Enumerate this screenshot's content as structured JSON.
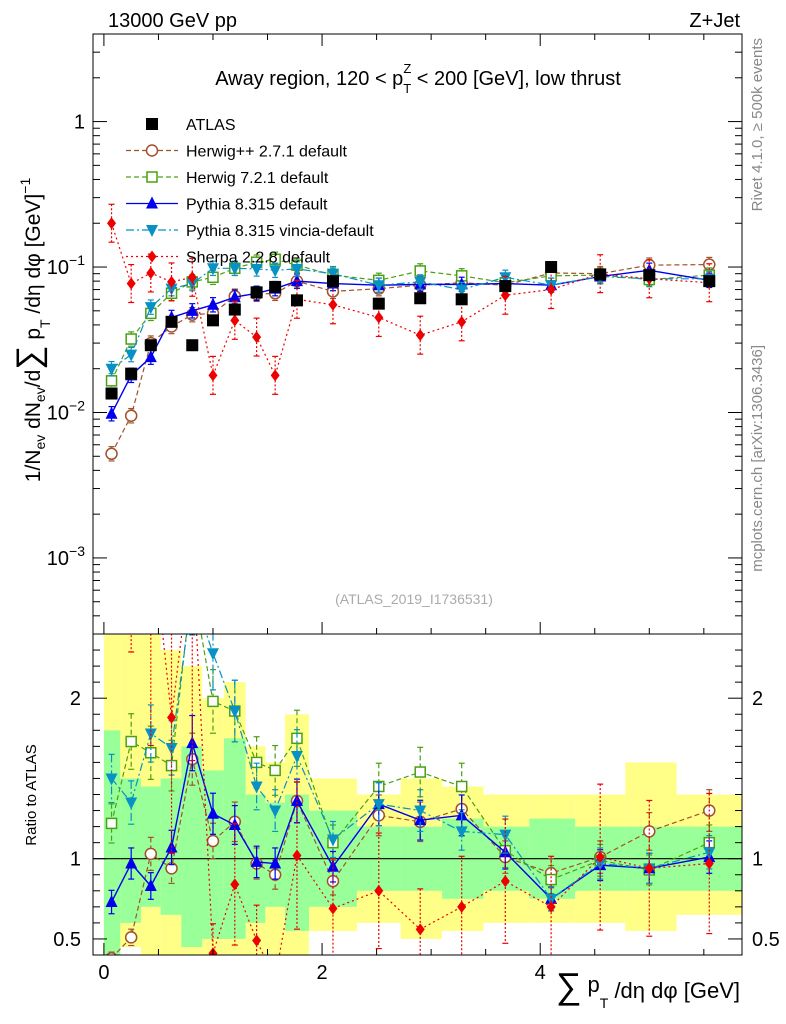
{
  "header": {
    "left": "13000 GeV pp",
    "right": "Z+Jet"
  },
  "side": {
    "rivet": "Rivet 4.1.0, ≥ 500k events",
    "mcplots": "mcplots.cern.ch [arXiv:1306.3436]"
  },
  "chart_data": [
    {
      "type": "scatter",
      "title": "Away region, 120 < p_T^Z < 200 [GeV], low thrust",
      "xlabel": "∑ p_T /dη dφ [GeV]",
      "ylabel": "1/N_ev dN_ev/d∑ p_T /dη dφ [GeV]^-1",
      "yscale": "log",
      "xlim": [
        -0.1,
        5.85
      ],
      "ylim": [
        0.0003,
        4.0
      ],
      "x_ticks": [
        0,
        2,
        4
      ],
      "y_ticks": [
        {
          "v": 0.001,
          "label": "10^-3"
        },
        {
          "v": 0.01,
          "label": "10^-2"
        },
        {
          "v": 0.1,
          "label": "10^-1"
        },
        {
          "v": 1,
          "label": "1"
        }
      ],
      "watermark": "(ATLAS_2019_I1736531)",
      "legend_position": "top-left",
      "x": [
        0.07,
        0.25,
        0.43,
        0.62,
        0.81,
        1.0,
        1.2,
        1.4,
        1.57,
        1.77,
        2.1,
        2.52,
        2.9,
        3.28,
        3.68,
        4.1,
        4.55,
        5.0,
        5.55
      ],
      "series": [
        {
          "name": "ATLAS",
          "color": "#000000",
          "marker": "square-filled",
          "line": "none",
          "values": [
            0.0135,
            0.0185,
            0.029,
            0.042,
            0.029,
            0.043,
            0.051,
            0.067,
            0.073,
            0.059,
            0.08,
            0.056,
            0.061,
            0.06,
            0.074,
            0.1,
            0.089,
            0.088,
            0.08
          ]
        },
        {
          "name": "Herwig++ 2.7.1 default",
          "color": "#a0522d",
          "marker": "circle-open",
          "line": "dashed",
          "values": [
            0.0052,
            0.0095,
            0.03,
            0.039,
            0.047,
            0.048,
            0.063,
            0.065,
            0.066,
            0.08,
            0.068,
            0.071,
            0.075,
            0.078,
            0.075,
            0.091,
            0.09,
            0.103,
            0.104
          ],
          "ratio": [
            0.38,
            0.51,
            1.03,
            0.94,
            1.62,
            1.11,
            1.23,
            0.97,
            0.9,
            1.36,
            0.86,
            1.27,
            1.23,
            1.31,
            1.01,
            0.91,
            1.01,
            1.17,
            1.3
          ]
        },
        {
          "name": "Herwig 7.2.1 default",
          "color": "#4aa012",
          "marker": "square-open",
          "line": "dashed",
          "values": [
            0.0165,
            0.032,
            0.048,
            0.066,
            0.079,
            0.085,
            0.098,
            0.108,
            0.113,
            0.103,
            0.088,
            0.081,
            0.094,
            0.087,
            0.078,
            0.087,
            0.088,
            0.082,
            0.088
          ],
          "ratio": [
            1.22,
            1.73,
            1.66,
            1.58,
            2.72,
            1.98,
            1.92,
            1.6,
            1.55,
            1.75,
            1.1,
            1.45,
            1.54,
            1.45,
            1.05,
            0.87,
            0.99,
            0.93,
            1.1
          ]
        },
        {
          "name": "Pythia 8.315 default",
          "color": "#0000ee",
          "marker": "triangle-up-filled",
          "line": "solid",
          "values": [
            0.0098,
            0.018,
            0.024,
            0.045,
            0.05,
            0.055,
            0.062,
            0.066,
            0.071,
            0.08,
            0.077,
            0.075,
            0.076,
            0.076,
            0.077,
            0.075,
            0.086,
            0.095,
            0.081
          ],
          "ratio": [
            0.73,
            0.97,
            0.83,
            1.07,
            1.72,
            1.28,
            1.21,
            0.98,
            0.97,
            1.36,
            0.95,
            1.34,
            1.24,
            1.27,
            1.04,
            0.75,
            0.96,
            0.94,
            1.01
          ]
        },
        {
          "name": "Pythia 8.315 vincia-default",
          "color": "#0891c4",
          "marker": "triangle-down-filled",
          "line": "dashdot",
          "values": [
            0.02,
            0.025,
            0.053,
            0.071,
            0.077,
            0.098,
            0.098,
            0.097,
            0.095,
            0.097,
            0.09,
            0.075,
            0.079,
            0.07,
            0.085,
            0.075,
            0.086,
            0.083,
            0.083
          ],
          "ratio": [
            1.5,
            1.35,
            1.78,
            1.69,
            2.66,
            2.28,
            1.92,
            1.45,
            1.3,
            1.64,
            1.12,
            1.34,
            1.3,
            1.17,
            1.15,
            0.75,
            0.97,
            0.94,
            1.04
          ]
        },
        {
          "name": "Sherpa 2.2.8 default",
          "color": "#ee0000",
          "marker": "diamond-filled",
          "line": "dotted",
          "values": [
            0.2,
            0.077,
            0.091,
            0.079,
            0.085,
            0.018,
            0.043,
            0.033,
            0.018,
            0.06,
            0.055,
            0.045,
            0.034,
            0.042,
            0.064,
            0.07,
            0.09,
            0.083,
            0.078
          ],
          "ratio": [
            14.7,
            4.16,
            3.1,
            1.88,
            2.93,
            0.41,
            0.84,
            0.49,
            0.25,
            1.02,
            0.69,
            0.8,
            0.56,
            0.7,
            0.86,
            0.7,
            1.01,
            0.94,
            0.97
          ]
        }
      ]
    },
    {
      "type": "scatter",
      "ylabel": "Ratio to ATLAS",
      "ylim": [
        0.4,
        2.4
      ],
      "y_ticks": [
        {
          "v": 0.5,
          "label": "0.5"
        },
        {
          "v": 1,
          "label": "1"
        },
        {
          "v": 2,
          "label": "2"
        }
      ],
      "reference": 1.0,
      "bins": [
        [
          0.0,
          0.15
        ],
        [
          0.15,
          0.34
        ],
        [
          0.34,
          0.52
        ],
        [
          0.52,
          0.71
        ],
        [
          0.71,
          0.9
        ],
        [
          0.9,
          1.1
        ],
        [
          1.1,
          1.3
        ],
        [
          1.3,
          1.48
        ],
        [
          1.48,
          1.66
        ],
        [
          1.66,
          1.88
        ],
        [
          1.88,
          2.32
        ],
        [
          2.32,
          2.72
        ],
        [
          2.72,
          3.1
        ],
        [
          3.1,
          3.48
        ],
        [
          3.48,
          3.9
        ],
        [
          3.9,
          4.32
        ],
        [
          4.32,
          4.78
        ],
        [
          4.78,
          5.25
        ],
        [
          5.25,
          5.85
        ]
      ],
      "band_inner": [
        [
          0.4,
          1.8
        ],
        [
          0.6,
          1.5
        ],
        [
          0.7,
          1.45
        ],
        [
          0.65,
          1.5
        ],
        [
          0.45,
          1.7
        ],
        [
          0.5,
          1.55
        ],
        [
          0.5,
          1.75
        ],
        [
          0.6,
          1.4
        ],
        [
          0.7,
          1.35
        ],
        [
          0.55,
          1.4
        ],
        [
          0.7,
          1.3
        ],
        [
          0.8,
          1.2
        ],
        [
          0.8,
          1.2
        ],
        [
          0.75,
          1.25
        ],
        [
          0.8,
          1.2
        ],
        [
          0.75,
          1.25
        ],
        [
          0.8,
          1.2
        ],
        [
          0.8,
          1.2
        ],
        [
          0.8,
          1.2
        ]
      ],
      "band_outer": [
        [
          0.4,
          2.4
        ],
        [
          0.45,
          2.4
        ],
        [
          0.4,
          2.4
        ],
        [
          0.4,
          2.3
        ],
        [
          0.4,
          2.2
        ],
        [
          0.4,
          2.0
        ],
        [
          0.4,
          2.1
        ],
        [
          0.4,
          1.7
        ],
        [
          0.4,
          1.6
        ],
        [
          0.4,
          1.9
        ],
        [
          0.55,
          1.5
        ],
        [
          0.6,
          1.4
        ],
        [
          0.5,
          1.5
        ],
        [
          0.55,
          1.45
        ],
        [
          0.6,
          1.4
        ],
        [
          0.6,
          1.4
        ],
        [
          0.6,
          1.4
        ],
        [
          0.55,
          1.6
        ],
        [
          0.65,
          1.4
        ]
      ]
    }
  ]
}
